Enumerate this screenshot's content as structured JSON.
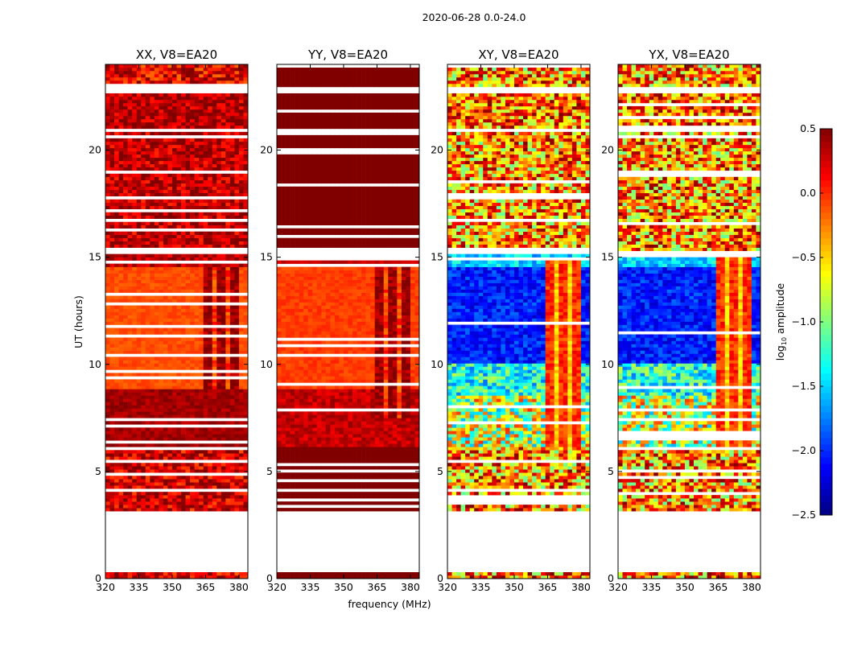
{
  "chart_data": {
    "type": "heatmap",
    "title": "2020-06-28 0.0-24.0",
    "xlabel": "frequency (MHz)",
    "ylabel": "UT (hours)",
    "xlim": [
      320,
      384
    ],
    "ylim": [
      0,
      24
    ],
    "xticks": [
      "320",
      "335",
      "350",
      "365",
      "380"
    ],
    "xtick_values": [
      320,
      335,
      350,
      365,
      380
    ],
    "yticks": [
      "0",
      "5",
      "10",
      "15",
      "20"
    ],
    "ytick_values": [
      0,
      5,
      10,
      15,
      20
    ],
    "colorbar": {
      "label_main": "log",
      "label_sub": "10",
      "label_rest": " amplitude",
      "range": [
        -2.5,
        0.5
      ],
      "colormap": "jet",
      "ticks": [
        "0.5",
        "0.0",
        "−0.5",
        "−1.0",
        "−1.5",
        "−2.0",
        "−2.5"
      ],
      "tick_values": [
        0.5,
        0.0,
        -0.5,
        -1.0,
        -1.5,
        -2.0,
        -2.5
      ]
    },
    "flag_color": "#ffffff",
    "panels": [
      {
        "title": "XX, V8=EA20",
        "bands": [
          [
            0,
            0.3,
            0.2,
            0.35,
            0
          ],
          [
            0.3,
            3.1,
            null,
            0,
            0
          ],
          [
            3.1,
            6.2,
            0.25,
            0.35,
            0.25
          ],
          [
            6.2,
            8.8,
            0.4,
            0.12,
            0.12
          ],
          [
            8.8,
            14.5,
            -0.1,
            0.08,
            0.08
          ],
          [
            14.5,
            15.3,
            0.3,
            0.2,
            0.5
          ],
          [
            15.3,
            20.8,
            0.3,
            0.3,
            0.15
          ],
          [
            20.8,
            21.0,
            null,
            0,
            0
          ],
          [
            21.0,
            22.6,
            0.35,
            0.3,
            0.15
          ],
          [
            22.6,
            22.9,
            null,
            0,
            0
          ],
          [
            22.9,
            24,
            0.2,
            0.4,
            0.1
          ]
        ],
        "hot_band": {
          "f0": 364,
          "f1": 380,
          "t0": 8.8,
          "t1": 14.5,
          "value": 0.45
        }
      },
      {
        "title": "YY, V8=EA20",
        "bands": [
          [
            0,
            0.3,
            0.5,
            0,
            0
          ],
          [
            0.3,
            3.1,
            null,
            0,
            0
          ],
          [
            3.1,
            6.2,
            0.5,
            0,
            0.3
          ],
          [
            6.2,
            8.8,
            0.3,
            0.15,
            0.12
          ],
          [
            8.8,
            14.5,
            -0.05,
            0.08,
            0.08
          ],
          [
            14.5,
            15.3,
            0.3,
            0.1,
            0.5
          ],
          [
            15.3,
            20.8,
            0.5,
            0,
            0.2
          ],
          [
            20.8,
            21.0,
            null,
            0,
            0
          ],
          [
            21.0,
            22.6,
            0.5,
            0,
            0.2
          ],
          [
            22.6,
            22.9,
            null,
            0,
            0
          ],
          [
            22.9,
            24,
            0.5,
            0,
            0.1
          ]
        ],
        "hot_band": {
          "f0": 364,
          "f1": 380,
          "t0": 7.5,
          "t1": 14.5,
          "value": 0.45
        }
      },
      {
        "title": "XY, V8=EA20",
        "bands": [
          [
            0,
            0.3,
            -0.2,
            0.8,
            0
          ],
          [
            0.3,
            3.1,
            null,
            0,
            0
          ],
          [
            3.1,
            6.2,
            -0.3,
            0.8,
            0.25
          ],
          [
            6.2,
            8.5,
            -0.8,
            0.8,
            0.12
          ],
          [
            8.5,
            10.0,
            -1.3,
            0.5,
            0.1
          ],
          [
            10.0,
            14.5,
            -2.05,
            0.25,
            0.05
          ],
          [
            14.5,
            15.3,
            -1.5,
            0.3,
            0.5
          ],
          [
            15.3,
            20.8,
            -0.3,
            0.8,
            0.15
          ],
          [
            20.8,
            21.0,
            null,
            0,
            0
          ],
          [
            21.0,
            22.6,
            -0.2,
            0.7,
            0.15
          ],
          [
            22.6,
            22.9,
            null,
            0,
            0
          ],
          [
            22.9,
            24,
            -0.3,
            0.8,
            0.1
          ]
        ],
        "hot_band": {
          "f0": 364,
          "f1": 380,
          "t0": 6.2,
          "t1": 15.0,
          "value": 0.0
        }
      },
      {
        "title": "YX, V8=EA20",
        "bands": [
          [
            0,
            0.3,
            -0.2,
            0.8,
            0
          ],
          [
            0.3,
            3.1,
            null,
            0,
            0
          ],
          [
            3.1,
            6.2,
            -0.3,
            0.8,
            0.25
          ],
          [
            6.2,
            8.5,
            -0.8,
            0.8,
            0.12
          ],
          [
            8.5,
            10.0,
            -1.3,
            0.5,
            0.1
          ],
          [
            10.0,
            14.5,
            -2.05,
            0.25,
            0.05
          ],
          [
            14.5,
            15.3,
            -1.5,
            0.3,
            0.5
          ],
          [
            15.3,
            20.8,
            -0.3,
            0.8,
            0.15
          ],
          [
            20.8,
            21.0,
            null,
            0,
            0
          ],
          [
            21.0,
            22.6,
            -0.2,
            0.7,
            0.15
          ],
          [
            22.6,
            22.9,
            null,
            0,
            0
          ],
          [
            22.9,
            24,
            -0.3,
            0.8,
            0.1
          ]
        ],
        "hot_band": {
          "f0": 364,
          "f1": 380,
          "t0": 6.2,
          "t1": 15.0,
          "value": 0.0
        }
      }
    ]
  }
}
